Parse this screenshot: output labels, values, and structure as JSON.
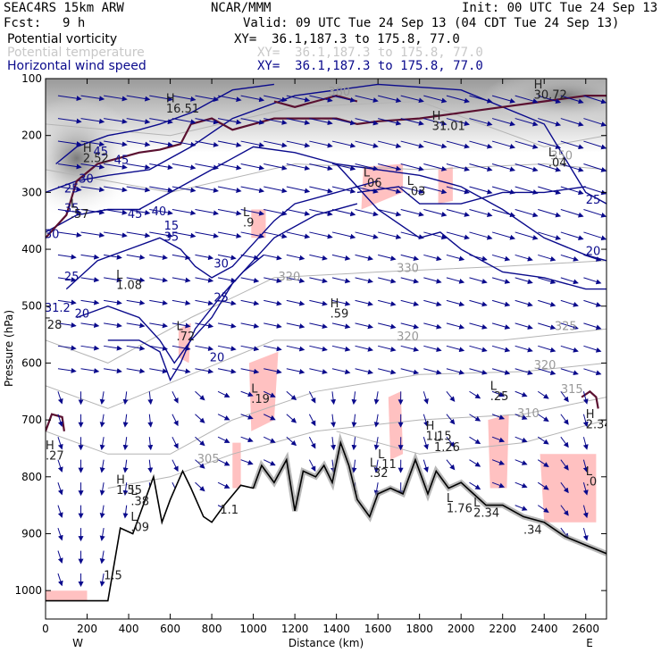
{
  "header": {
    "model": "SEAC4RS 15km ARW",
    "org": "NCAR/MMM",
    "init": "Init: 00 UTC Tue 24 Sep 13",
    "fcst_label": "Fcst:",
    "fcst_value": "9 h",
    "valid": "Valid: 09 UTC Tue 24 Sep 13 (04 CDT Tue 24 Sep 13)"
  },
  "legend": [
    {
      "name": "Potential vorticity",
      "xy": "XY=  36.1,187.3 to 175.8, 77.0",
      "color": "#000000"
    },
    {
      "name": "Potential temperature",
      "xy": "XY=  36.1,187.3 to 175.8, 77.0",
      "color": "#c8c8c8"
    },
    {
      "name": "Horizontal wind speed",
      "xy": "XY=  36.1,187.3 to 175.8, 77.0",
      "color": "#0a0a8c"
    }
  ],
  "colors": {
    "wind": "#0a0a8c",
    "theta": "#b4b4b4",
    "pv": "#5a1030",
    "shade": "#ffb6b6",
    "terrain": "#000000"
  },
  "chart_data": {
    "type": "cross-section",
    "xlabel": "Distance (km)",
    "ylabel": "Pressure (hPa)",
    "xlim": [
      0,
      2700
    ],
    "ylim": [
      1050,
      100
    ],
    "x_ticks": [
      "0",
      "200",
      "400",
      "600",
      "800",
      "1000",
      "1200",
      "1400",
      "1600",
      "1800",
      "2000",
      "2200",
      "2400",
      "2600"
    ],
    "y_ticks": [
      "100",
      "200",
      "300",
      "400",
      "500",
      "600",
      "700",
      "800",
      "900",
      "1000"
    ],
    "x_end_labels": {
      "left": "W",
      "right": "E"
    },
    "terrain_surface_hPa": [
      [
        0,
        1018
      ],
      [
        300,
        1018
      ],
      [
        360,
        890
      ],
      [
        420,
        900
      ],
      [
        460,
        860
      ],
      [
        520,
        800
      ],
      [
        560,
        880
      ],
      [
        600,
        840
      ],
      [
        660,
        790
      ],
      [
        700,
        820
      ],
      [
        760,
        870
      ],
      [
        800,
        880
      ],
      [
        860,
        850
      ],
      [
        940,
        815
      ],
      [
        1000,
        820
      ],
      [
        1040,
        780
      ],
      [
        1100,
        810
      ],
      [
        1160,
        770
      ],
      [
        1200,
        860
      ],
      [
        1240,
        790
      ],
      [
        1300,
        800
      ],
      [
        1340,
        780
      ],
      [
        1380,
        810
      ],
      [
        1420,
        740
      ],
      [
        1460,
        780
      ],
      [
        1500,
        840
      ],
      [
        1560,
        870
      ],
      [
        1600,
        830
      ],
      [
        1660,
        820
      ],
      [
        1720,
        830
      ],
      [
        1780,
        770
      ],
      [
        1840,
        830
      ],
      [
        1880,
        790
      ],
      [
        1940,
        820
      ],
      [
        2000,
        810
      ],
      [
        2060,
        830
      ],
      [
        2120,
        850
      ],
      [
        2200,
        850
      ],
      [
        2300,
        870
      ],
      [
        2400,
        880
      ],
      [
        2500,
        905
      ],
      [
        2600,
        920
      ],
      [
        2700,
        935
      ]
    ],
    "wind_speed_contour_labels": [
      {
        "x": -5,
        "p": 380,
        "label": "30"
      },
      {
        "x": 90,
        "p": 300,
        "label": "25"
      },
      {
        "x": 90,
        "p": 335,
        "label": "35"
      },
      {
        "x": 160,
        "p": 283,
        "label": "30"
      },
      {
        "x": 230,
        "p": 235,
        "label": "45"
      },
      {
        "x": 330,
        "p": 250,
        "label": "45"
      },
      {
        "x": 395,
        "p": 345,
        "label": "45"
      },
      {
        "x": 510,
        "p": 340,
        "label": "40"
      },
      {
        "x": 570,
        "p": 365,
        "label": "15"
      },
      {
        "x": 570,
        "p": 385,
        "label": "35"
      },
      {
        "x": 90,
        "p": 455,
        "label": "25"
      },
      {
        "x": -5,
        "p": 510,
        "label": "31.2"
      },
      {
        "x": 140,
        "p": 520,
        "label": "20"
      },
      {
        "x": 810,
        "p": 492,
        "label": "25"
      },
      {
        "x": 790,
        "p": 597,
        "label": "20"
      },
      {
        "x": 810,
        "p": 432,
        "label": "30"
      },
      {
        "x": 2600,
        "p": 320,
        "label": "25"
      },
      {
        "x": 2600,
        "p": 410,
        "label": "20"
      }
    ],
    "theta_contour_labels": [
      {
        "x": 1120,
        "p": 455,
        "label": "320"
      },
      {
        "x": 1690,
        "p": 440,
        "label": "330"
      },
      {
        "x": 1690,
        "p": 560,
        "label": "320"
      },
      {
        "x": 2450,
        "p": 542,
        "label": "325"
      },
      {
        "x": 2350,
        "p": 610,
        "label": "320"
      },
      {
        "x": 2480,
        "p": 653,
        "label": "315"
      },
      {
        "x": 2270,
        "p": 695,
        "label": "310"
      },
      {
        "x": 730,
        "p": 775,
        "label": "305"
      },
      {
        "x": 1360,
        "p": 130,
        "label": "380"
      },
      {
        "x": 2430,
        "p": 242,
        "label": "350"
      }
    ],
    "extrema": [
      {
        "x": 580,
        "p": 160,
        "mark": "H",
        "value": "16.51"
      },
      {
        "x": 180,
        "p": 247,
        "mark": "H",
        "value": "2.52"
      },
      {
        "x": 2350,
        "p": 135,
        "mark": "H",
        "value": "30.72"
      },
      {
        "x": 1860,
        "p": 190,
        "mark": "H",
        "value": "31.01"
      },
      {
        "x": 1530,
        "p": 290,
        "mark": "L",
        "value": ".06"
      },
      {
        "x": 1740,
        "p": 305,
        "mark": "L",
        "value": ".03"
      },
      {
        "x": 2420,
        "p": 255,
        "mark": "L",
        "value": ".04"
      },
      {
        "x": 950,
        "p": 360,
        "mark": "L",
        "value": ".9"
      },
      {
        "x": 120,
        "p": 345,
        "mark": "L",
        "value": ".57"
      },
      {
        "x": 340,
        "p": 470,
        "mark": "L",
        "value": "1.08"
      },
      {
        "x": 1370,
        "p": 520,
        "mark": "H",
        "value": ".59"
      },
      {
        "x": -10,
        "p": 540,
        "mark": "L",
        "value": ".28"
      },
      {
        "x": 630,
        "p": 560,
        "mark": "L",
        "value": ".72"
      },
      {
        "x": 990,
        "p": 670,
        "mark": "L",
        "value": ".19"
      },
      {
        "x": 2140,
        "p": 665,
        "mark": "L",
        "value": ".25"
      },
      {
        "x": 1830,
        "p": 735,
        "mark": "H",
        "value": "1.15"
      },
      {
        "x": 1870,
        "p": 755,
        "mark": "L",
        "value": "1.26"
      },
      {
        "x": 2600,
        "p": 715,
        "mark": "H",
        "value": "2.34"
      },
      {
        "x": 0,
        "p": 770,
        "mark": "H",
        "value": ".27"
      },
      {
        "x": 1560,
        "p": 800,
        "mark": "L",
        "value": ".32"
      },
      {
        "x": 1600,
        "p": 785,
        "mark": "L",
        "value": ".11"
      },
      {
        "x": 340,
        "p": 830,
        "mark": "H",
        "value": "1.55"
      },
      {
        "x": 410,
        "p": 850,
        "mark": "L",
        "value": ".38"
      },
      {
        "x": 410,
        "p": 895,
        "mark": "L",
        "value": ".09"
      },
      {
        "x": 2600,
        "p": 815,
        "mark": "L",
        "value": ".0"
      },
      {
        "x": 1930,
        "p": 862,
        "mark": "L",
        "value": "1.76"
      },
      {
        "x": 2060,
        "p": 870,
        "mark": "L",
        "value": "2.34"
      },
      {
        "x": 2300,
        "p": 900,
        "mark": "",
        "value": ".34"
      },
      {
        "x": 840,
        "p": 865,
        "mark": "",
        "value": "1.1"
      },
      {
        "x": 280,
        "p": 980,
        "mark": "",
        "value": "1.5"
      }
    ]
  }
}
